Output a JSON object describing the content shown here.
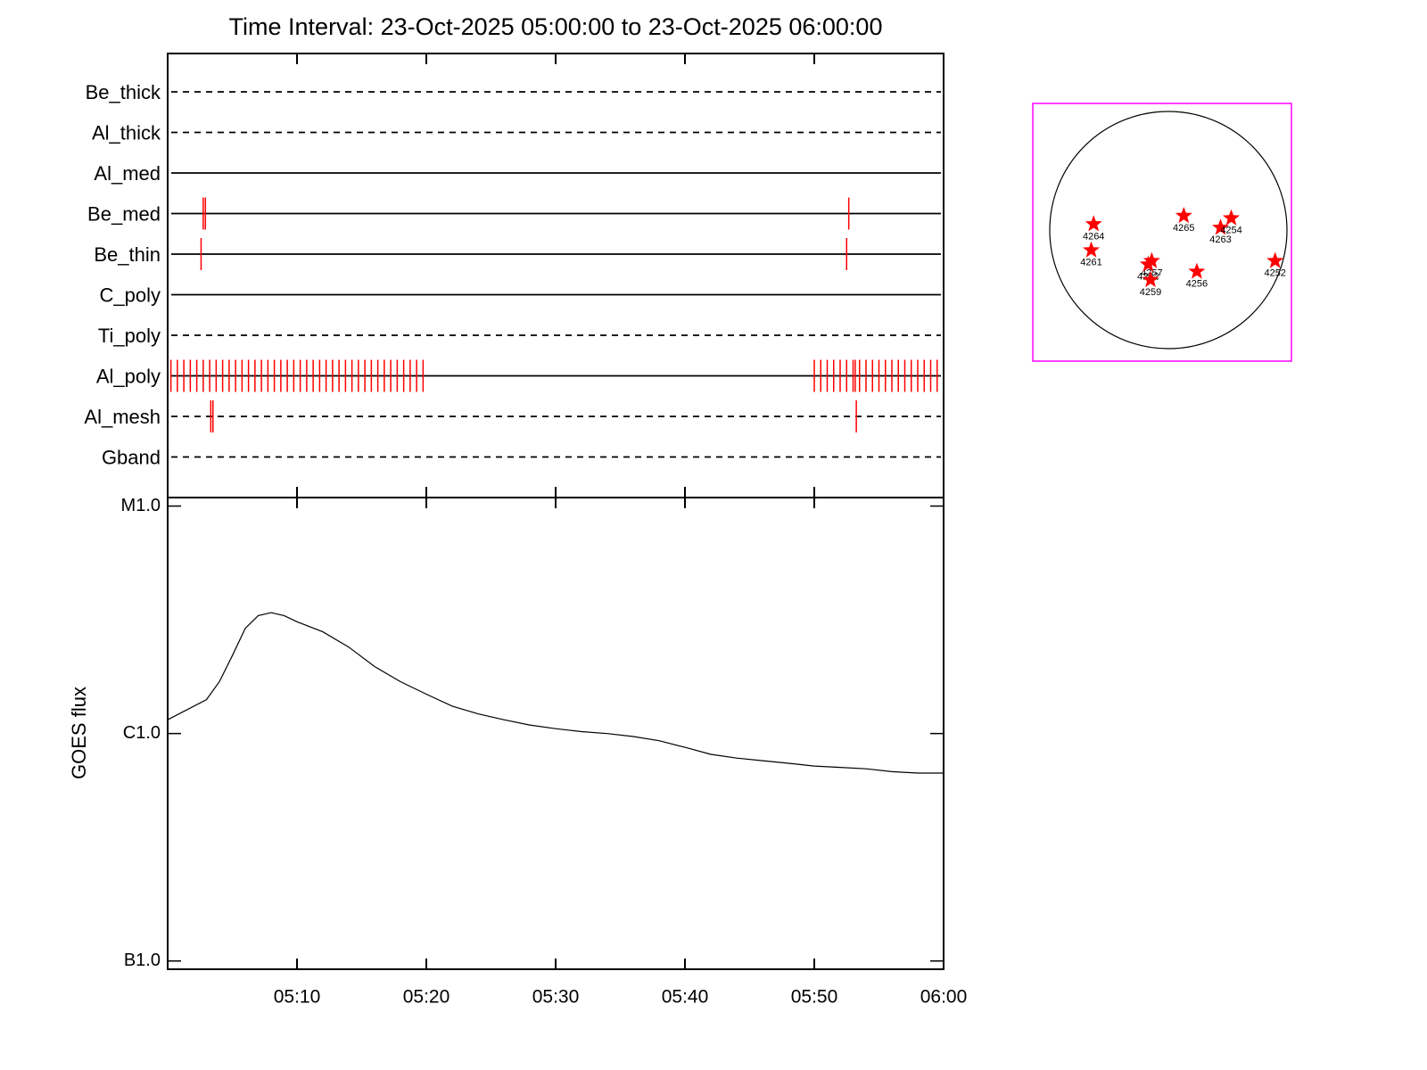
{
  "chart_data": [
    {
      "type": "events",
      "title": "Time Interval: 23-Oct-2025 05:00:00 to 23-Oct-2025 06:00:00",
      "rows": [
        {
          "name": "Be_thick",
          "style": "dashed",
          "events": []
        },
        {
          "name": "Al_thick",
          "style": "dashed",
          "events": []
        },
        {
          "name": "Al_med",
          "style": "solid",
          "events": []
        },
        {
          "name": "Be_med",
          "style": "solid",
          "events": [
            "05:02:45",
            "05:02:55",
            "05:52:40"
          ]
        },
        {
          "name": "Be_thin",
          "style": "solid",
          "events": [
            "05:02:35",
            "05:52:30"
          ]
        },
        {
          "name": "C_poly",
          "style": "solid",
          "events": []
        },
        {
          "name": "Ti_poly",
          "style": "dashed",
          "events": []
        },
        {
          "name": "Al_poly",
          "style": "solid",
          "events": [
            "05:00:15",
            "05:00:45",
            "05:01:15",
            "05:01:45",
            "05:02:15",
            "05:02:45",
            "05:03:15",
            "05:03:45",
            "05:04:15",
            "05:04:45",
            "05:05:15",
            "05:05:45",
            "05:06:15",
            "05:06:45",
            "05:07:15",
            "05:07:45",
            "05:08:15",
            "05:08:45",
            "05:09:15",
            "05:09:45",
            "05:10:15",
            "05:10:45",
            "05:11:15",
            "05:11:45",
            "05:12:15",
            "05:12:45",
            "05:13:15",
            "05:13:45",
            "05:14:15",
            "05:14:45",
            "05:15:15",
            "05:15:45",
            "05:16:15",
            "05:16:45",
            "05:17:15",
            "05:17:45",
            "05:18:15",
            "05:18:45",
            "05:19:15",
            "05:19:45",
            "05:50:00",
            "05:50:30",
            "05:51:00",
            "05:51:30",
            "05:52:00",
            "05:52:30",
            "05:53:00",
            "05:53:10",
            "05:53:30",
            "05:54:00",
            "05:54:30",
            "05:55:00",
            "05:55:30",
            "05:56:00",
            "05:56:30",
            "05:57:00",
            "05:57:30",
            "05:58:00",
            "05:58:30",
            "05:59:00",
            "05:59:30"
          ]
        },
        {
          "name": "Al_mesh",
          "style": "dashed",
          "events": [
            "05:03:20",
            "05:03:30",
            "05:53:15"
          ]
        },
        {
          "name": "Gband",
          "style": "dashed",
          "events": []
        }
      ],
      "color": "#ff0000"
    },
    {
      "type": "line",
      "ylabel": "GOES flux",
      "ylog": true,
      "color": "#000000",
      "x": [
        "05:00",
        "05:03",
        "05:04",
        "05:05",
        "05:06",
        "05:07",
        "05:08",
        "05:09",
        "05:10",
        "05:12",
        "05:14",
        "05:16",
        "05:18",
        "05:20",
        "05:22",
        "05:24",
        "05:26",
        "05:28",
        "05:30",
        "05:32",
        "05:34",
        "05:36",
        "05:38",
        "05:40",
        "05:42",
        "05:44",
        "05:46",
        "05:48",
        "05:50",
        "05:52",
        "05:54",
        "05:56",
        "05:58",
        "06:00"
      ],
      "values": [
        1.15e-06,
        1.41e-06,
        1.69e-06,
        2.2e-06,
        2.9e-06,
        3.3e-06,
        3.4e-06,
        3.3e-06,
        3.1e-06,
        2.8e-06,
        2.4e-06,
        1.97e-06,
        1.69e-06,
        1.49e-06,
        1.32e-06,
        1.22e-06,
        1.15e-06,
        1.09e-06,
        1.05e-06,
        1.02e-06,
        1e-06,
        9.7e-07,
        9.3e-07,
        8.7e-07,
        8.1e-07,
        7.8e-07,
        7.6e-07,
        7.4e-07,
        7.2e-07,
        7.1e-07,
        7e-07,
        6.8e-07,
        6.7e-07,
        6.7e-07
      ],
      "xlim": [
        "05:00",
        "06:00"
      ],
      "xticks": [
        "05:10",
        "05:20",
        "05:30",
        "05:40",
        "05:50",
        "06:00"
      ],
      "ylim": [
        9.2e-08,
        1.09e-05
      ],
      "yticks": [
        {
          "value": 1e-07,
          "label": "B1.0"
        },
        {
          "value": 1e-06,
          "label": "C1.0"
        },
        {
          "value": 1e-05,
          "label": "M1.0"
        }
      ]
    },
    {
      "type": "disk",
      "color": "#ff0000",
      "regions": [
        {
          "name": "4264",
          "x": -0.63,
          "y": 0.05
        },
        {
          "name": "4261",
          "x": -0.65,
          "y": -0.17
        },
        {
          "name": "4265",
          "x": 0.13,
          "y": 0.12
        },
        {
          "name": "4263",
          "x": 0.44,
          "y": 0.02
        },
        {
          "name": "4254",
          "x": 0.53,
          "y": 0.1
        },
        {
          "name": "4257",
          "x": -0.14,
          "y": -0.26
        },
        {
          "name": "4262",
          "x": -0.17,
          "y": -0.29
        },
        {
          "name": "4259",
          "x": -0.15,
          "y": -0.42
        },
        {
          "name": "4256",
          "x": 0.24,
          "y": -0.35
        },
        {
          "name": "4252",
          "x": 0.9,
          "y": -0.26
        }
      ]
    }
  ]
}
